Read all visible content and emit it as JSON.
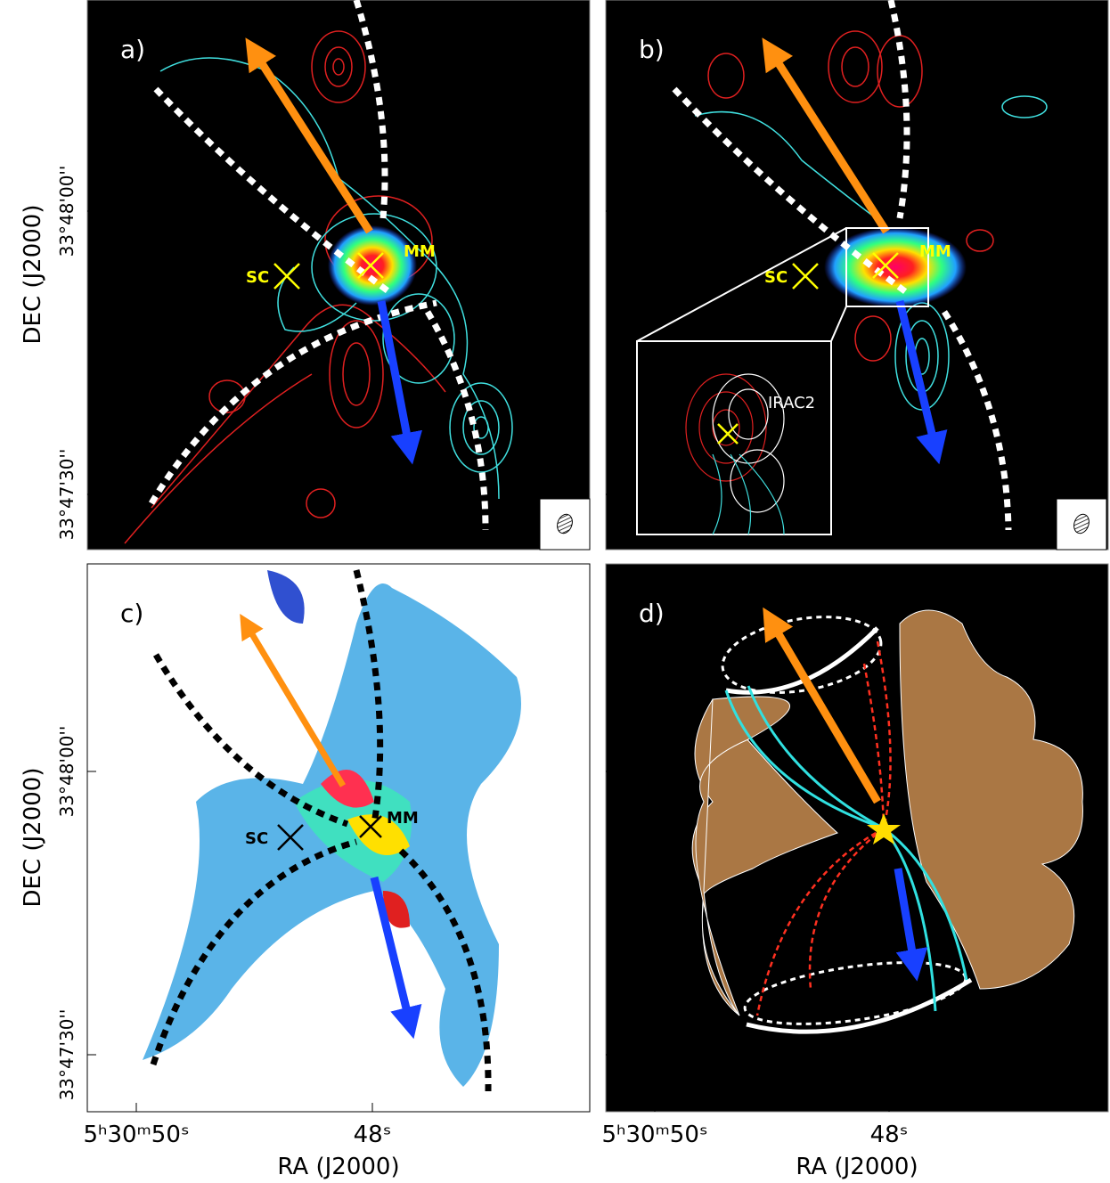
{
  "panels": [
    {
      "label": "a)",
      "annotations": [
        "SC",
        "MM"
      ]
    },
    {
      "label": "b)",
      "annotations": [
        "SC",
        "MM"
      ],
      "inset_label": "IRAC2"
    },
    {
      "label": "c)",
      "annotations": [
        "SC",
        "MM"
      ]
    },
    {
      "label": "d)"
    }
  ],
  "axes": {
    "y_label": "DEC (J2000)",
    "y_ticks": [
      "33°48'00''",
      "33°47'30''"
    ],
    "x_label": "RA (J2000)",
    "x_ticks": [
      "5ʰ30ᵐ50ˢ",
      "48ˢ"
    ]
  }
}
